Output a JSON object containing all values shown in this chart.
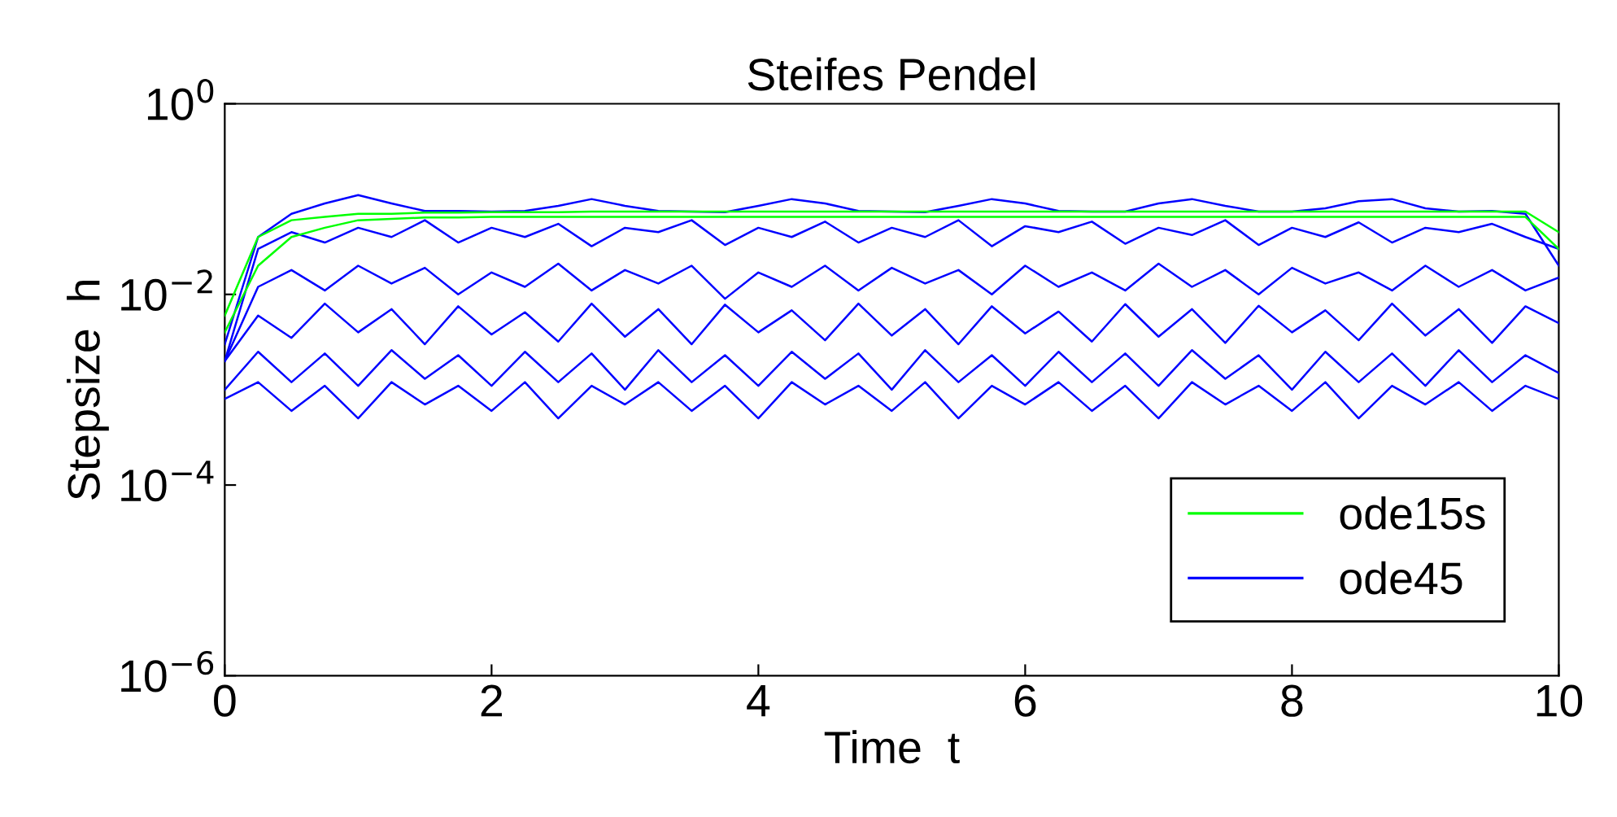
{
  "chart_data": {
    "type": "line",
    "title": "Steifes Pendel",
    "xlabel": "Time  t",
    "ylabel": "Stepsize  h",
    "x": [
      0,
      0.25,
      0.5,
      0.75,
      1,
      1.25,
      1.5,
      1.75,
      2,
      2.25,
      2.5,
      2.75,
      3,
      3.25,
      3.5,
      3.75,
      4,
      4.25,
      4.5,
      4.75,
      5,
      5.25,
      5.5,
      5.75,
      6,
      6.25,
      6.5,
      6.75,
      7,
      7.25,
      7.5,
      7.75,
      8,
      8.25,
      8.5,
      8.75,
      9,
      9.25,
      9.5,
      9.75,
      10
    ],
    "series": [
      {
        "name": "ode15s",
        "color": "#00ff00",
        "values": [
          0.006,
          0.04,
          0.06,
          0.065,
          0.07,
          0.07,
          0.072,
          0.072,
          0.073,
          0.073,
          0.073,
          0.074,
          0.074,
          0.074,
          0.074,
          0.074,
          0.074,
          0.074,
          0.074,
          0.074,
          0.074,
          0.074,
          0.074,
          0.074,
          0.074,
          0.074,
          0.074,
          0.074,
          0.074,
          0.074,
          0.074,
          0.074,
          0.074,
          0.074,
          0.074,
          0.074,
          0.074,
          0.074,
          0.074,
          0.074,
          0.045
        ]
      },
      {
        "color": "#00ff00",
        "values": [
          0.004,
          0.02,
          0.04,
          0.05,
          0.06,
          0.062,
          0.064,
          0.064,
          0.065,
          0.065,
          0.065,
          0.065,
          0.065,
          0.065,
          0.065,
          0.065,
          0.065,
          0.065,
          0.065,
          0.065,
          0.065,
          0.065,
          0.065,
          0.065,
          0.065,
          0.065,
          0.065,
          0.065,
          0.065,
          0.065,
          0.065,
          0.065,
          0.065,
          0.065,
          0.065,
          0.065,
          0.065,
          0.065,
          0.065,
          0.065,
          0.03
        ]
      },
      {
        "name": "ode45",
        "color": "#0000ff",
        "values": [
          0.003,
          0.04,
          0.07,
          0.09,
          0.11,
          0.09,
          0.075,
          0.075,
          0.074,
          0.075,
          0.085,
          0.1,
          0.085,
          0.075,
          0.074,
          0.073,
          0.085,
          0.1,
          0.09,
          0.075,
          0.074,
          0.073,
          0.085,
          0.1,
          0.09,
          0.075,
          0.074,
          0.074,
          0.09,
          0.1,
          0.085,
          0.074,
          0.074,
          0.08,
          0.095,
          0.1,
          0.08,
          0.074,
          0.075,
          0.07,
          0.02
        ]
      },
      {
        "color": "#0000ff",
        "values": [
          0.002,
          0.03,
          0.045,
          0.035,
          0.05,
          0.04,
          0.06,
          0.035,
          0.05,
          0.04,
          0.055,
          0.032,
          0.05,
          0.045,
          0.06,
          0.033,
          0.05,
          0.04,
          0.058,
          0.035,
          0.05,
          0.04,
          0.06,
          0.032,
          0.052,
          0.045,
          0.058,
          0.034,
          0.05,
          0.042,
          0.06,
          0.033,
          0.05,
          0.04,
          0.057,
          0.035,
          0.05,
          0.045,
          0.055,
          0.04,
          0.03
        ]
      },
      {
        "color": "#0000ff",
        "values": [
          0.002,
          0.012,
          0.018,
          0.011,
          0.02,
          0.013,
          0.019,
          0.01,
          0.017,
          0.012,
          0.021,
          0.011,
          0.018,
          0.013,
          0.02,
          0.009,
          0.017,
          0.012,
          0.02,
          0.011,
          0.019,
          0.013,
          0.018,
          0.01,
          0.02,
          0.012,
          0.017,
          0.011,
          0.021,
          0.012,
          0.018,
          0.01,
          0.019,
          0.013,
          0.017,
          0.011,
          0.02,
          0.012,
          0.018,
          0.011,
          0.015
        ]
      },
      {
        "color": "#0000ff",
        "values": [
          0.002,
          0.006,
          0.0035,
          0.008,
          0.004,
          0.007,
          0.003,
          0.0075,
          0.0038,
          0.0065,
          0.0032,
          0.008,
          0.0036,
          0.007,
          0.003,
          0.0078,
          0.004,
          0.0068,
          0.0033,
          0.008,
          0.0037,
          0.007,
          0.003,
          0.0075,
          0.0039,
          0.0066,
          0.0032,
          0.0079,
          0.0036,
          0.007,
          0.0031,
          0.0076,
          0.004,
          0.0068,
          0.0033,
          0.008,
          0.0037,
          0.007,
          0.0031,
          0.0075,
          0.005
        ]
      },
      {
        "color": "#0000ff",
        "values": [
          0.001,
          0.0025,
          0.0012,
          0.0024,
          0.0011,
          0.0026,
          0.0013,
          0.0023,
          0.0011,
          0.0025,
          0.0012,
          0.0024,
          0.001,
          0.0026,
          0.0012,
          0.0023,
          0.0011,
          0.0025,
          0.0013,
          0.0024,
          0.001,
          0.0026,
          0.0012,
          0.0023,
          0.0011,
          0.0025,
          0.0012,
          0.0024,
          0.0011,
          0.0026,
          0.0013,
          0.0023,
          0.001,
          0.0025,
          0.0012,
          0.0024,
          0.0011,
          0.0026,
          0.0012,
          0.0023,
          0.0015
        ]
      },
      {
        "color": "#0000ff",
        "values": [
          0.0008,
          0.0012,
          0.0006,
          0.0011,
          0.0005,
          0.0012,
          0.0007,
          0.0011,
          0.0006,
          0.0012,
          0.0005,
          0.0011,
          0.0007,
          0.0012,
          0.0006,
          0.0011,
          0.0005,
          0.0012,
          0.0007,
          0.0011,
          0.0006,
          0.0012,
          0.0005,
          0.0011,
          0.0007,
          0.0012,
          0.0006,
          0.0011,
          0.0005,
          0.0012,
          0.0007,
          0.0011,
          0.0006,
          0.0012,
          0.0005,
          0.0011,
          0.0007,
          0.0012,
          0.0006,
          0.0011,
          0.0008
        ]
      }
    ],
    "log": "y",
    "xlim": [
      0,
      10
    ],
    "ylim": [
      1e-06,
      1
    ],
    "xticks": [
      0,
      2,
      4,
      6,
      8,
      10
    ],
    "yticks": [
      {
        "value": 1e-06,
        "label": "10$^{−6}$"
      },
      {
        "value": 0.0001,
        "label": "10$^{−4}$"
      },
      {
        "value": 0.01,
        "label": "10$^{−2}$"
      },
      {
        "value": 1,
        "label": "10$^{0}$"
      }
    ],
    "grid": false,
    "legend": "lower right",
    "marker": "none",
    "line_style": "solid"
  }
}
